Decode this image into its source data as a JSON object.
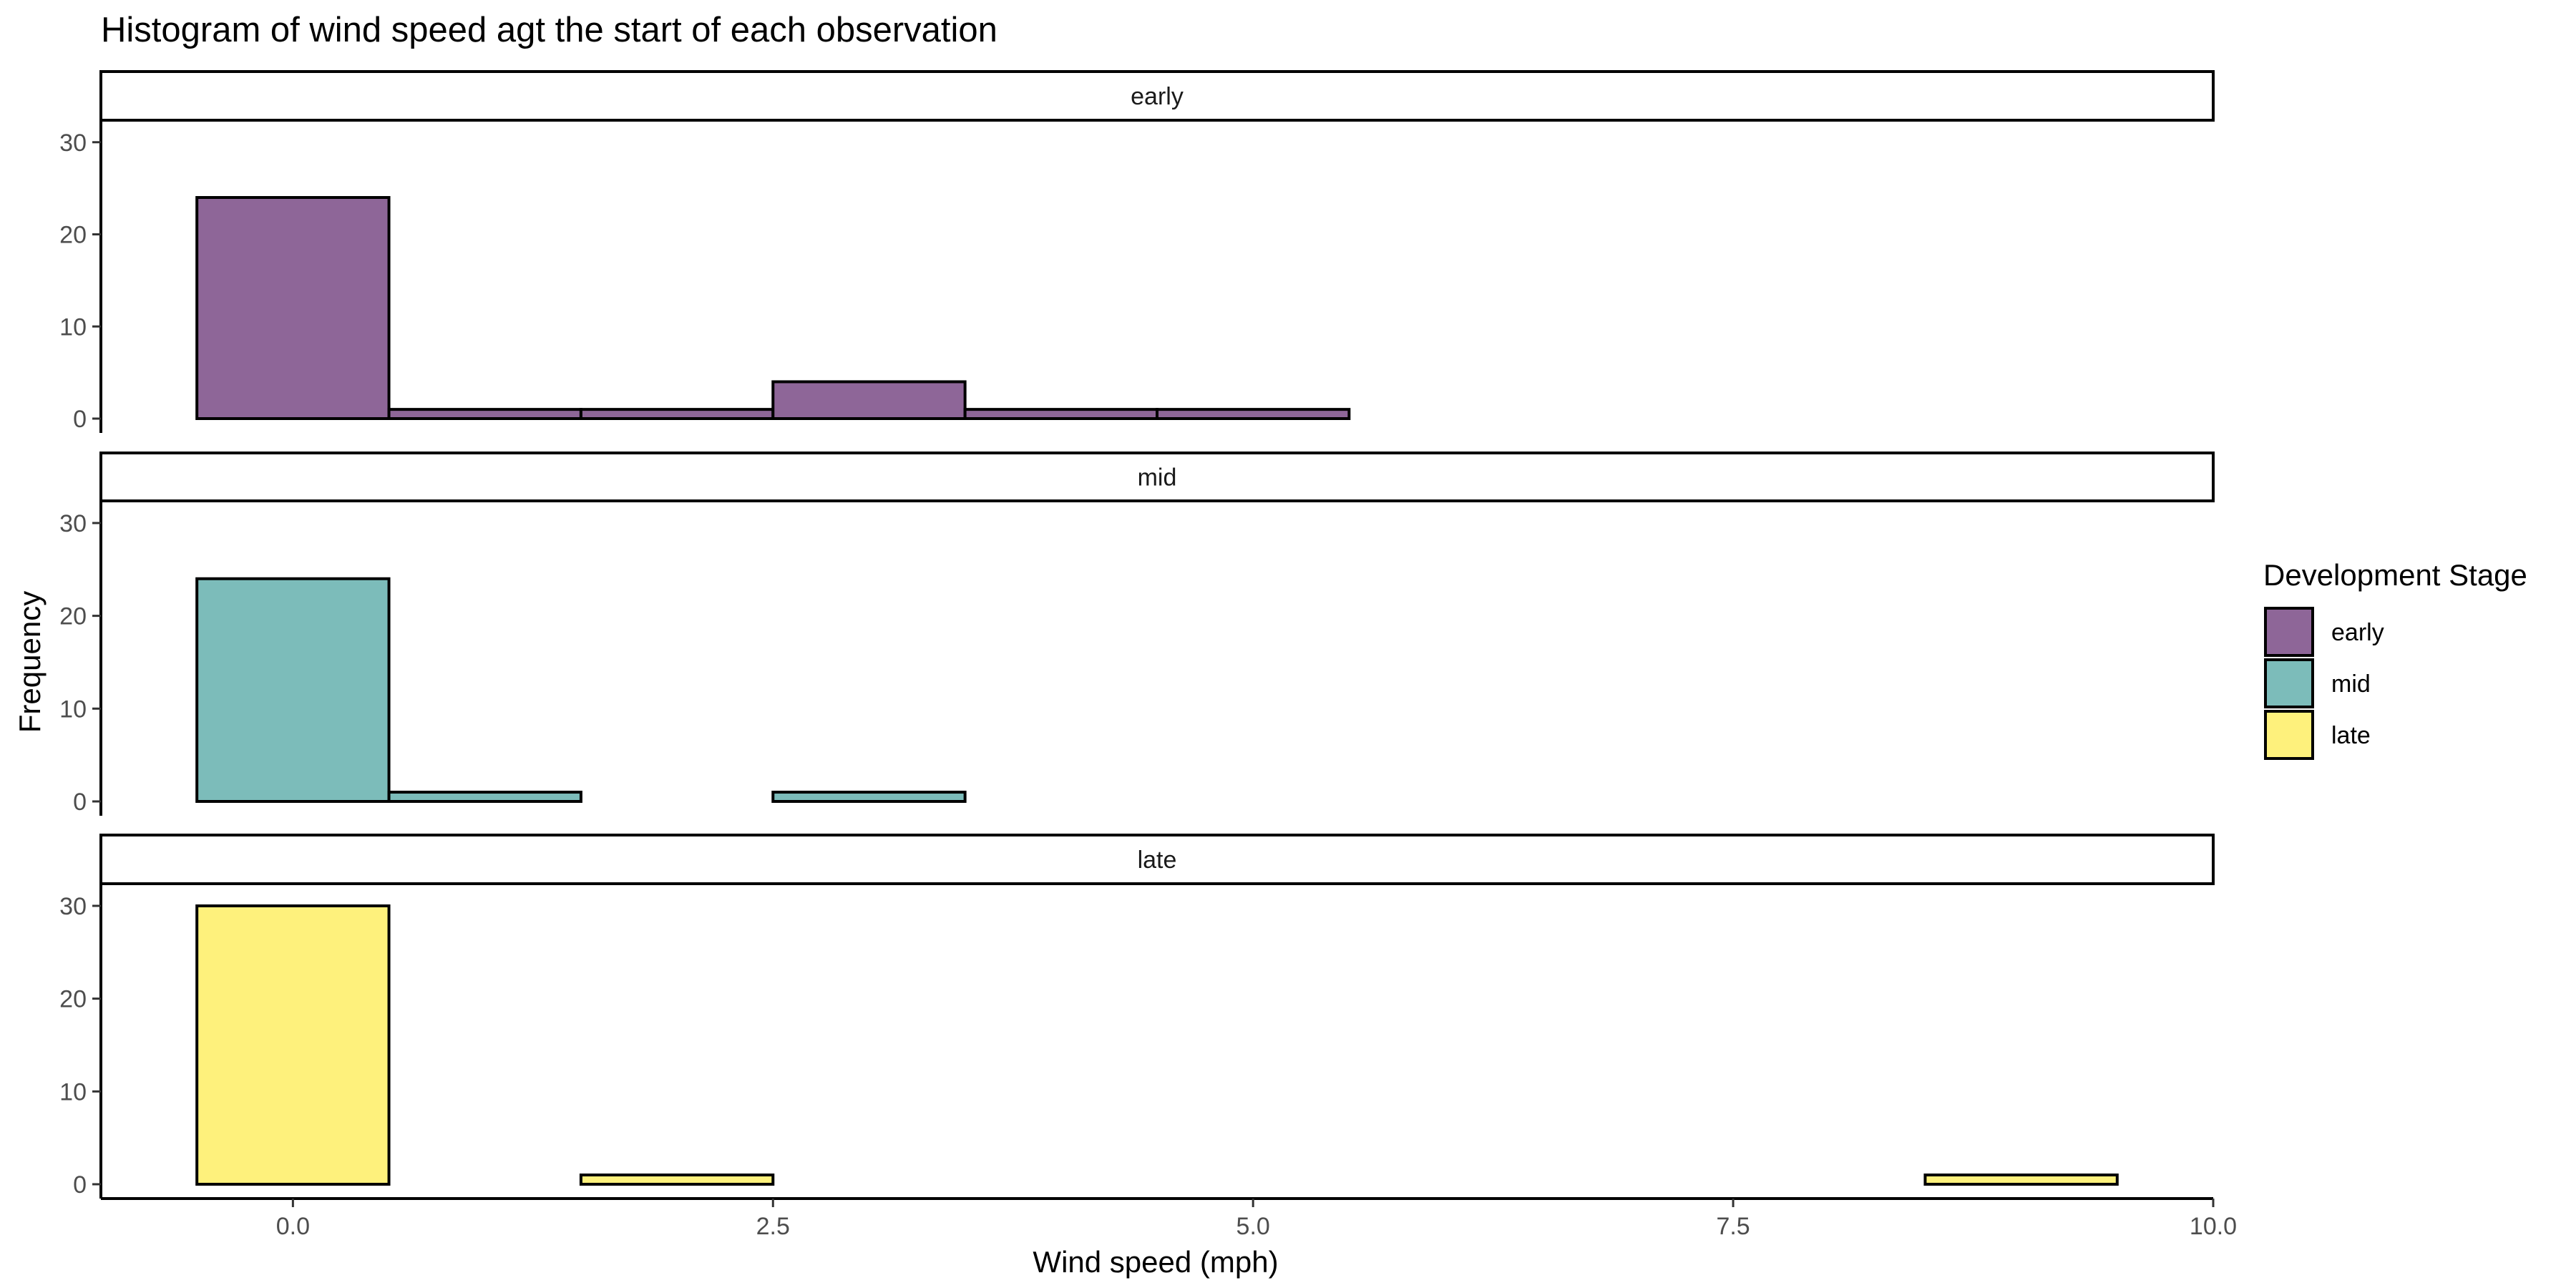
{
  "chart_data": {
    "type": "bar",
    "title": "Histogram of wind speed agt the start of each observation",
    "xlabel": "Wind speed (mph)",
    "ylabel": "Frequency",
    "xlim": [
      -1,
      10
    ],
    "ylim": [
      0,
      32
    ],
    "x_ticks": [
      0.0,
      2.5,
      5.0,
      7.5,
      10.0
    ],
    "x_tick_labels": [
      "0.0",
      "2.5",
      "5.0",
      "7.5",
      "10.0"
    ],
    "y_ticks": [
      0,
      10,
      20,
      30
    ],
    "y_tick_labels": [
      "0",
      "10",
      "20",
      "30"
    ],
    "bin_width": 1,
    "bin_centers": [
      0,
      1,
      2,
      3,
      4,
      5,
      6,
      7,
      8,
      9
    ],
    "grid": false,
    "legend": {
      "title": "Development Stage",
      "position": "right",
      "entries": [
        "early",
        "mid",
        "late"
      ]
    },
    "series": [
      {
        "name": "early",
        "color": "#8E6698",
        "values": [
          24,
          1,
          1,
          4,
          1,
          1,
          0,
          0,
          0,
          0
        ]
      },
      {
        "name": "mid",
        "color": "#7CBCBA",
        "values": [
          24,
          1,
          0,
          1,
          0,
          0,
          0,
          0,
          0,
          0
        ]
      },
      {
        "name": "late",
        "color": "#FEF17C",
        "values": [
          30,
          0,
          1,
          0,
          0,
          0,
          0,
          0,
          0,
          1
        ]
      }
    ]
  }
}
